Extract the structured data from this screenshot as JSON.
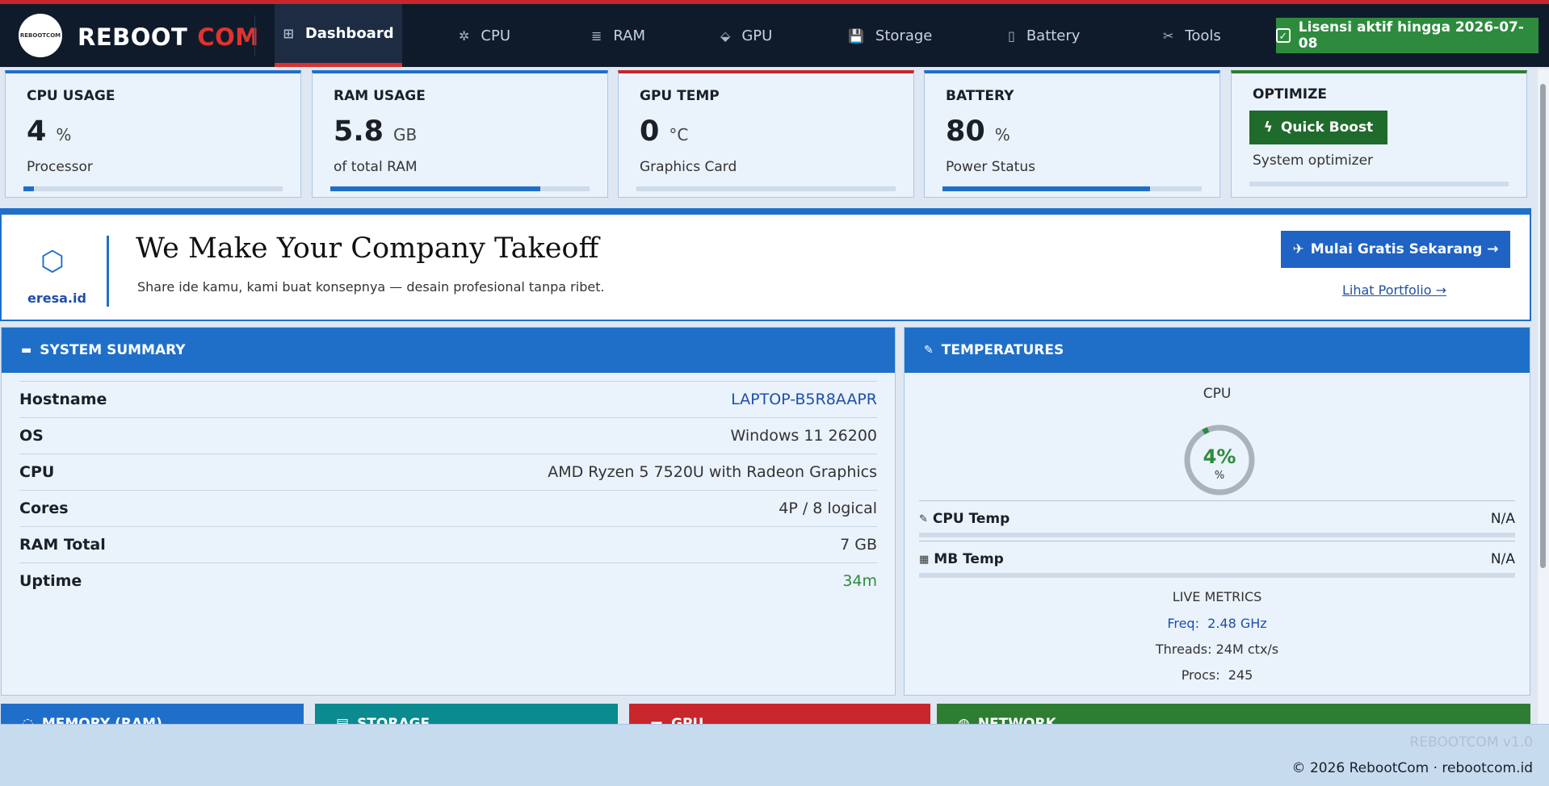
{
  "nav": {
    "brand_main": "REBOOT",
    "brand_accent": "COM",
    "logo_text": "REBOOTCOM",
    "items": [
      {
        "icon": "⊞",
        "label": "Dashboard"
      },
      {
        "icon": "✲",
        "label": "CPU"
      },
      {
        "icon": "≣",
        "label": "RAM"
      },
      {
        "icon": "⬙",
        "label": "GPU"
      },
      {
        "icon": "💾",
        "label": "Storage"
      },
      {
        "icon": "▯",
        "label": "Battery"
      },
      {
        "icon": "✂",
        "label": "Tools"
      }
    ],
    "active": "Dashboard",
    "license": "Lisensi aktif hingga 2026-07-08"
  },
  "cards": {
    "cpu": {
      "label": "CPU USAGE",
      "value": "4",
      "unit": "%",
      "sub": "Processor",
      "level": 0.04
    },
    "ram": {
      "label": "RAM USAGE",
      "value": "5.8",
      "unit": "GB",
      "sub": "of total RAM",
      "level": 0.81
    },
    "gpu": {
      "label": "GPU TEMP",
      "value": "0",
      "unit": "°C",
      "sub": "Graphics Card",
      "level": 0
    },
    "battery": {
      "label": "BATTERY",
      "value": "80",
      "unit": "%",
      "sub": "Power Status",
      "level": 0.8
    },
    "optimize": {
      "label": "OPTIMIZE",
      "button": "Quick Boost",
      "sub": "System optimizer"
    }
  },
  "banner": {
    "site": "eresa.id",
    "title": "We Make Your Company Takeoff",
    "subtitle": "Share ide kamu, kami buat konsepnya — desain profesional tanpa ribet.",
    "cta": "Mulai Gratis Sekarang →",
    "link": "Lihat Portfolio →"
  },
  "summary": {
    "title": "SYSTEM SUMMARY",
    "rows": [
      {
        "key": "Hostname",
        "value": "LAPTOP-B5R8AAPR"
      },
      {
        "key": "OS",
        "value": "Windows 11 26200"
      },
      {
        "key": "CPU",
        "value": "AMD Ryzen 5 7520U with Radeon Graphics"
      },
      {
        "key": "Cores",
        "value": "4P / 8 logical"
      },
      {
        "key": "RAM Total",
        "value": "7 GB"
      },
      {
        "key": "Uptime",
        "value": "34m"
      }
    ]
  },
  "temps": {
    "title": "TEMPERATURES",
    "gauge_label": "CPU",
    "gauge_value": "4%",
    "gauge_unit": "%",
    "gauge_level": 0.04,
    "cpu_temp_label": "CPU Temp",
    "cpu_temp_value": "N/A",
    "mb_temp_label": "MB Temp",
    "mb_temp_value": "N/A",
    "live_title": "LIVE METRICS",
    "freq_label": "Freq:",
    "freq_value": "2.48 GHz",
    "threads_label": "Threads:",
    "threads_value": "24M ctx/s",
    "procs_label": "Procs:",
    "procs_value": "245"
  },
  "bottom_panels": [
    {
      "label": "MEMORY (RAM)",
      "color": "#1f6fc9"
    },
    {
      "label": "STORAGE",
      "color": "#0b8a8f"
    },
    {
      "label": "GPU",
      "color": "#c8262c"
    },
    {
      "label": "NETWORK",
      "color": "#2e7d32"
    }
  ],
  "footer": {
    "version": "REBOOTCOM v1.0",
    "copyright": "© 2026 RebootCom · rebootcom.id"
  },
  "colors": {
    "nav_bg": "#0f1b2b",
    "accent_blue": "#1f6fc9",
    "accent_red": "#c8262c",
    "accent_green": "#2e8b3e"
  }
}
